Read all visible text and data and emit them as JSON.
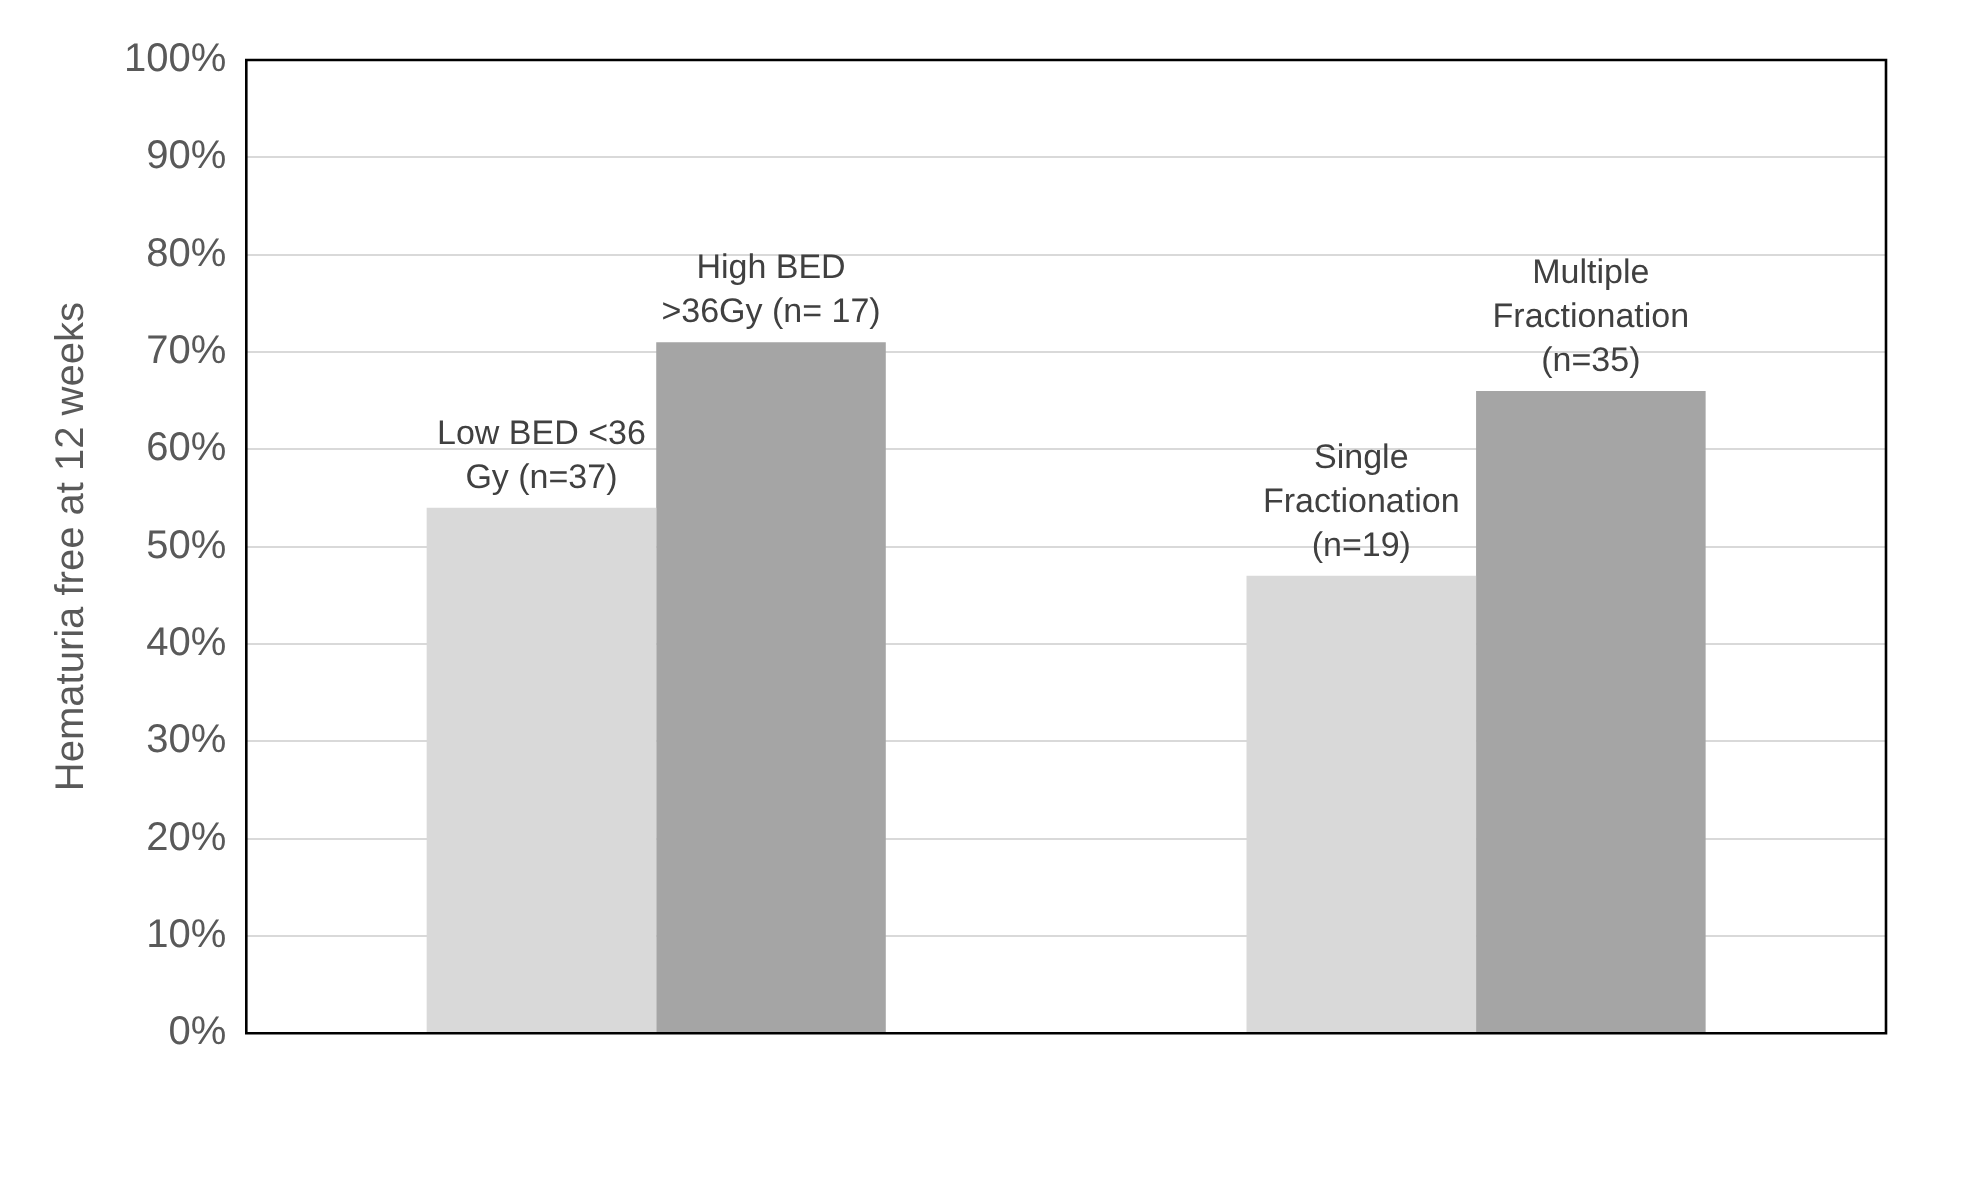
{
  "chart_data": {
    "type": "bar",
    "ylabel": "Hematuria free at 12 weeks",
    "categories": [
      null,
      null
    ],
    "series": [
      {
        "color": "#d9d9d9",
        "values": [
          54,
          47
        ]
      },
      {
        "color": "#a5a5a5",
        "values": [
          71,
          66
        ]
      }
    ],
    "ylim": [
      0,
      100
    ],
    "yticks": [
      {
        "value": 0,
        "label": "0%"
      },
      {
        "value": 10,
        "label": "10%"
      },
      {
        "value": 20,
        "label": "20%"
      },
      {
        "value": 30,
        "label": "30%"
      },
      {
        "value": 40,
        "label": "40%"
      },
      {
        "value": 50,
        "label": "50%"
      },
      {
        "value": 60,
        "label": "60%"
      },
      {
        "value": 70,
        "label": "70%"
      },
      {
        "value": 80,
        "label": "80%"
      },
      {
        "value": 90,
        "label": "90%"
      },
      {
        "value": 100,
        "label": "100%"
      }
    ],
    "grid": "y",
    "annotations": [
      {
        "text": "Low BED <36 Gy (n=37)",
        "y": 54
      },
      {
        "text": "High BED >36Gy (n= 17)",
        "y": 71
      },
      {
        "text": "Single Fractionation (n=19)",
        "y": 47
      },
      {
        "text": "Multiple Fractionation (n=35)",
        "y": 66
      }
    ]
  }
}
